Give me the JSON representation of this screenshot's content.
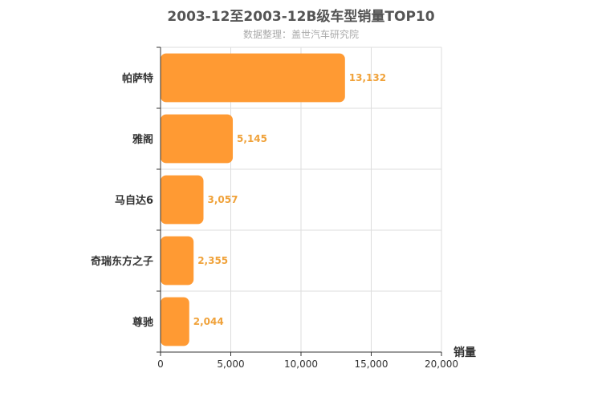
{
  "chart_data": {
    "type": "bar",
    "orientation": "horizontal",
    "title": "2003-12至2003-12B级车型销量TOP10",
    "subtitle": "数据整理：盖世汽车研究院",
    "categories": [
      "帕萨特",
      "雅阁",
      "马自达6",
      "奇瑞东方之子",
      "尊驰"
    ],
    "values": [
      13132,
      5145,
      3057,
      2355,
      2044
    ],
    "value_labels": [
      "13,132",
      "5,145",
      "3,057",
      "2,355",
      "2,044"
    ],
    "xlabel": "销量",
    "ylabel": "",
    "xlim": [
      0,
      20000
    ],
    "xticks": [
      0,
      5000,
      10000,
      15000,
      20000
    ],
    "xtick_labels": [
      "0",
      "5,000",
      "10,000",
      "15,000",
      "20,000"
    ],
    "grid": true,
    "colors": {
      "bar": "#ff9a33",
      "label": "#f0a23a",
      "grid": "#dddddd",
      "axis": "#333333"
    }
  }
}
